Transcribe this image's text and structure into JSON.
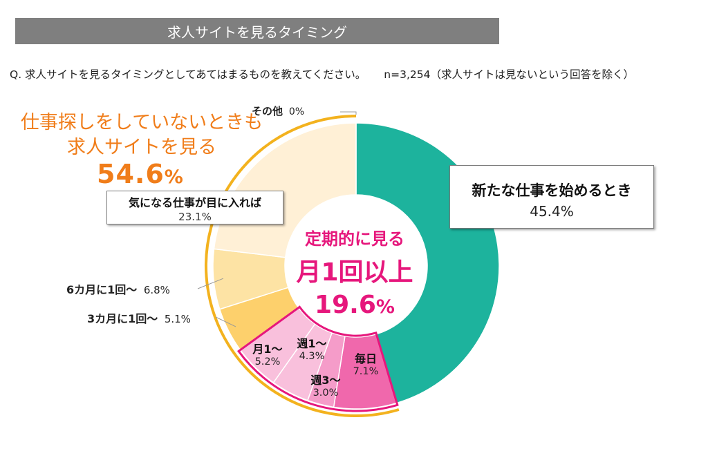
{
  "header": {
    "title": "求人サイトを見るタイミング"
  },
  "question": {
    "text": "Q.  求人サイトを見るタイミングとしてあてはまるものを教えてください。",
    "sample": "n=3,254（求人サイトは見ないという回答を除く）"
  },
  "callouts": {
    "orange_line1": "仕事探しをしていないときも",
    "orange_line2": "求人サイトを見る",
    "orange_value": "54.6",
    "orange_unit": "%",
    "center_line1": "定期的に見る",
    "center_line2": "月1回以上",
    "center_value": "19.6",
    "center_unit": "%"
  },
  "labels": {
    "new_job": {
      "label": "新たな仕事を始めるとき",
      "value": "45.4%"
    },
    "interesting": {
      "label": "気になる仕事が目に入れば",
      "value": "23.1%"
    },
    "six_month": {
      "label": "6カ月に1回〜",
      "value": "6.8%"
    },
    "three_month": {
      "label": "3カ月に1回〜",
      "value": "5.1%"
    },
    "monthly": {
      "label": "月1〜",
      "value": "5.2%"
    },
    "weekly1": {
      "label": "週1〜",
      "value": "4.3%"
    },
    "weekly3": {
      "label": "週3〜",
      "value": "3.0%"
    },
    "daily": {
      "label": "毎日",
      "value": "7.1%"
    },
    "other": {
      "label": "その他",
      "value": "0%"
    }
  },
  "colors": {
    "teal": "#1db39d",
    "pink_dark": "#f068ac",
    "pink_mid": "#f59cc9",
    "pink_light": "#f9c0dc",
    "yellow_dark": "#fdd06c",
    "yellow_mid": "#fde3a4",
    "cream": "#fff0d6",
    "orange_arc": "#f3b21e",
    "magenta_border": "#e6177c"
  },
  "chart_data": {
    "type": "pie",
    "variant": "donut",
    "order": "clockwise from top",
    "series": [
      {
        "category": "新たな仕事を始めるとき",
        "value": 45.4
      },
      {
        "category": "毎日",
        "value": 7.1
      },
      {
        "category": "週3〜",
        "value": 3.0
      },
      {
        "category": "週1〜",
        "value": 4.3
      },
      {
        "category": "月1〜",
        "value": 5.2
      },
      {
        "category": "3カ月に1回〜",
        "value": 5.1
      },
      {
        "category": "6カ月に1回〜",
        "value": 6.8
      },
      {
        "category": "気になる仕事が目に入れば",
        "value": 23.1
      },
      {
        "category": "その他",
        "value": 0
      }
    ],
    "groups": [
      {
        "name": "定期的に見る 月1回以上",
        "value": 19.6,
        "members": [
          "毎日",
          "週3〜",
          "週1〜",
          "月1〜"
        ]
      },
      {
        "name": "仕事探しをしていないときも求人サイトを見る",
        "value": 54.6,
        "members": [
          "毎日",
          "週3〜",
          "週1〜",
          "月1〜",
          "3カ月に1回〜",
          "6カ月に1回〜",
          "気になる仕事が目に入れば"
        ]
      }
    ]
  }
}
